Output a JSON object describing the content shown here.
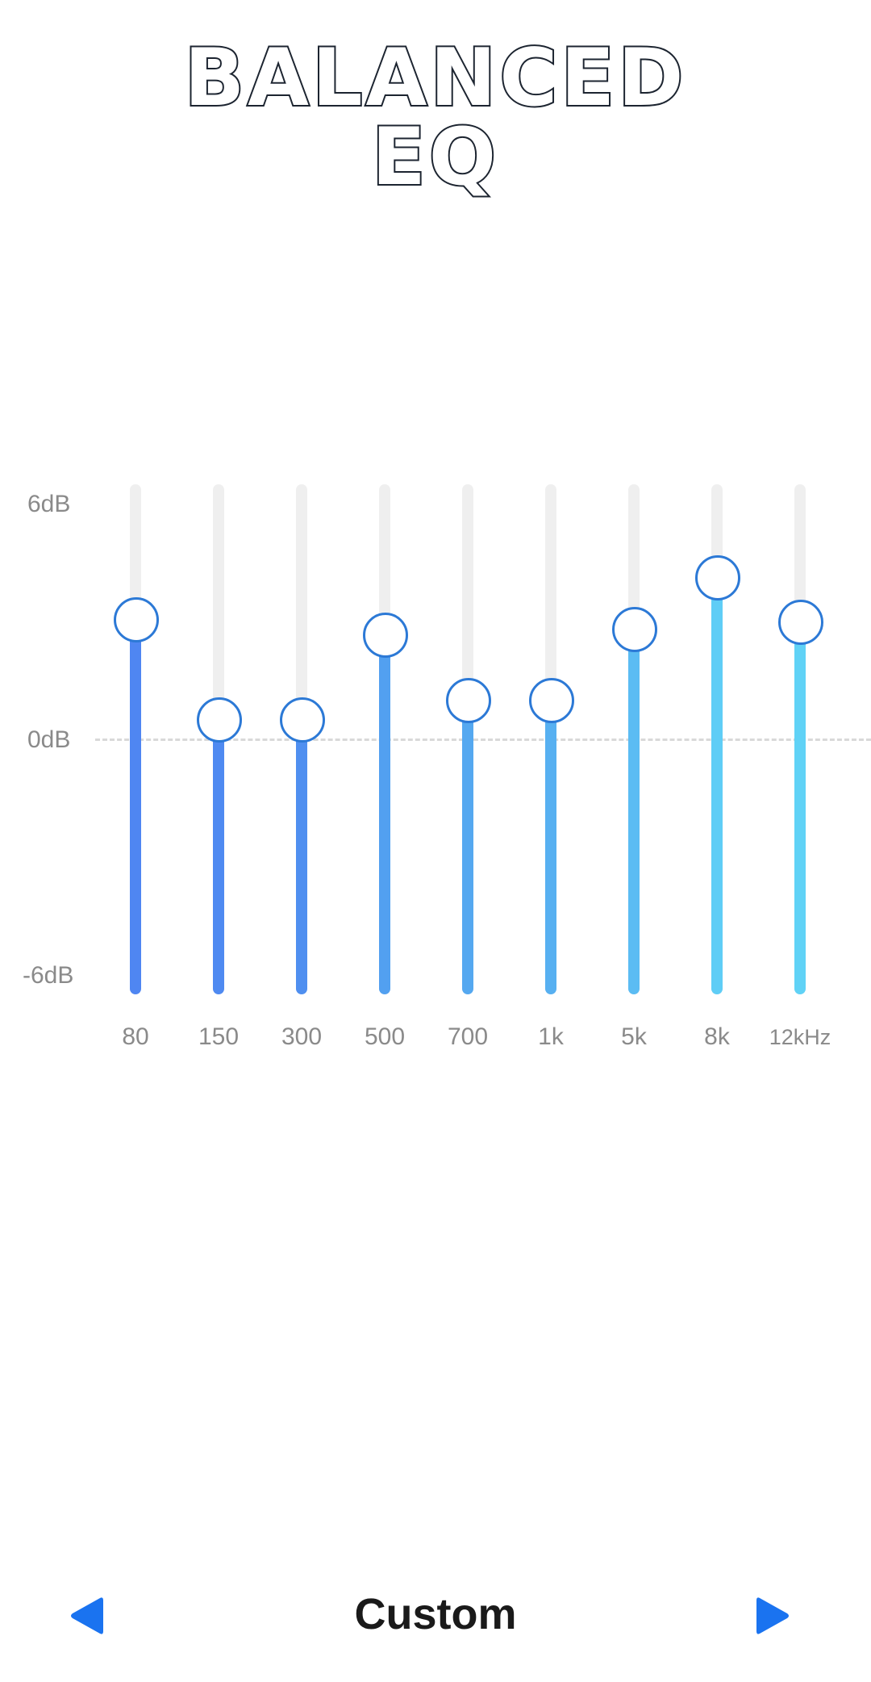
{
  "title": {
    "line1": "BALANCED",
    "line2": "EQ"
  },
  "equalizer": {
    "scale": {
      "max_label": "6dB",
      "zero_label": "0dB",
      "min_label": "-6dB",
      "max_db": 6,
      "min_db": -6
    },
    "bands": [
      {
        "label": "80",
        "gain_db": 3.1,
        "color": "#4f86f2"
      },
      {
        "label": "150",
        "gain_db": 0.5,
        "color": "#4f8af1"
      },
      {
        "label": "300",
        "gain_db": 0.5,
        "color": "#4f8ff0"
      },
      {
        "label": "500",
        "gain_db": 2.7,
        "color": "#52a0f0"
      },
      {
        "label": "700",
        "gain_db": 1.0,
        "color": "#55a8f0"
      },
      {
        "label": "1k",
        "gain_db": 1.0,
        "color": "#57b0f1"
      },
      {
        "label": "5k",
        "gain_db": 2.85,
        "color": "#5bbcf3"
      },
      {
        "label": "8k",
        "gain_db": 4.2,
        "color": "#5fcdf6"
      },
      {
        "label": "12kHz",
        "gain_db": 3.05,
        "color": "#60d2f6"
      }
    ],
    "knob_border_color": "#2c79d6"
  },
  "footer": {
    "preset_name": "Custom",
    "prev_icon": "triangle-left-icon",
    "next_icon": "triangle-right-icon",
    "accent_color": "#1a73f0"
  }
}
